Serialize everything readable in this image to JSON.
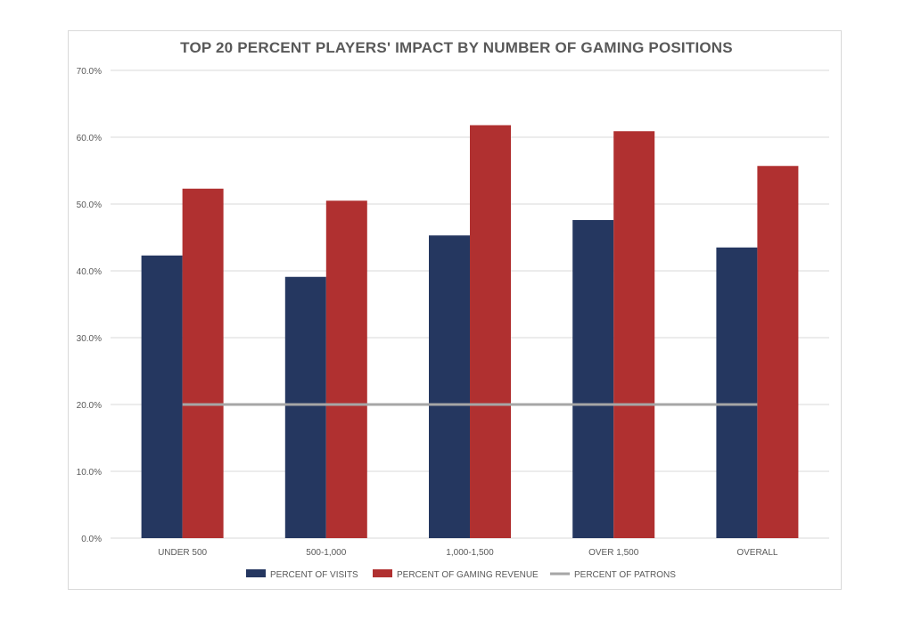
{
  "chart_data": {
    "type": "bar",
    "title": "TOP 20 PERCENT PLAYERS' IMPACT BY NUMBER OF GAMING POSITIONS",
    "xlabel": "",
    "ylabel": "",
    "categories": [
      "UNDER 500",
      "500-1,000",
      "1,000-1,500",
      "OVER 1,500",
      "OVERALL"
    ],
    "y_tick_labels": [
      "0.0%",
      "10.0%",
      "20.0%",
      "30.0%",
      "40.0%",
      "50.0%",
      "60.0%",
      "70.0%"
    ],
    "ylim": [
      0,
      70
    ],
    "grid": true,
    "legend_position": "bottom",
    "series": [
      {
        "name": "PERCENT OF VISITS",
        "kind": "bar",
        "color": "#253760",
        "values": [
          42.3,
          39.1,
          45.3,
          47.6,
          43.5
        ]
      },
      {
        "name": "PERCENT OF GAMING REVENUE",
        "kind": "bar",
        "color": "#b03030",
        "values": [
          52.3,
          50.5,
          61.8,
          60.9,
          55.7
        ]
      },
      {
        "name": "PERCENT OF PATRONS",
        "kind": "line",
        "color": "#a6a6a6",
        "values": [
          20,
          20,
          20,
          20,
          20
        ]
      }
    ]
  }
}
